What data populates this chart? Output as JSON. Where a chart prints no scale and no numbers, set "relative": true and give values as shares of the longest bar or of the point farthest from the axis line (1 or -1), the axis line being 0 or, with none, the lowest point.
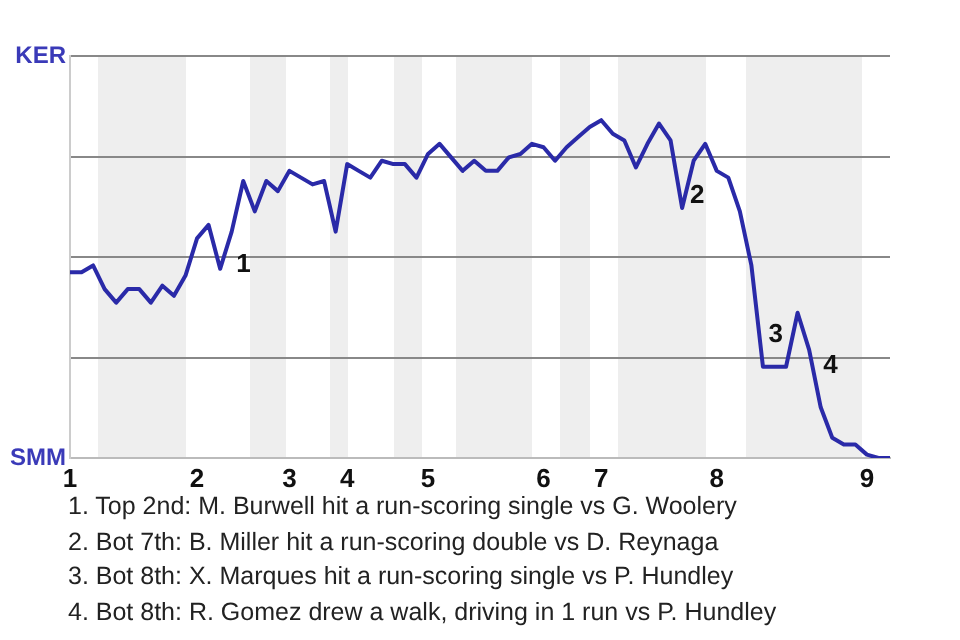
{
  "chart_data": {
    "type": "line",
    "categories": [
      "1",
      null,
      null,
      null,
      null,
      null,
      null,
      null,
      null,
      null,
      null,
      "2",
      null,
      null,
      null,
      null,
      null,
      null,
      null,
      "3",
      null,
      null,
      null,
      null,
      "4",
      null,
      null,
      null,
      null,
      null,
      null,
      "5",
      null,
      null,
      null,
      null,
      null,
      null,
      null,
      null,
      null,
      "6",
      null,
      null,
      null,
      null,
      "7",
      null,
      null,
      null,
      null,
      null,
      null,
      null,
      null,
      null,
      "8",
      null,
      null,
      null,
      null,
      null,
      null,
      null,
      null,
      null,
      null,
      null,
      null,
      "9",
      null,
      null
    ],
    "relative": true,
    "series": [
      {
        "color": "#2a2aa8",
        "values": [
          0.55,
          0.55,
          0.57,
          0.5,
          0.46,
          0.5,
          0.5,
          0.46,
          0.51,
          0.48,
          0.54,
          0.65,
          0.69,
          0.56,
          0.67,
          0.82,
          0.73,
          0.82,
          0.79,
          0.85,
          0.83,
          0.81,
          0.82,
          0.67,
          0.87,
          0.85,
          0.83,
          0.88,
          0.87,
          0.87,
          0.83,
          0.9,
          0.93,
          0.89,
          0.85,
          0.88,
          0.85,
          0.85,
          0.89,
          0.9,
          0.93,
          0.92,
          0.88,
          0.92,
          0.95,
          0.98,
          1,
          0.96,
          0.94,
          0.86,
          0.93,
          0.99,
          0.94,
          0.74,
          0.88,
          0.93,
          0.85,
          0.83,
          0.73,
          0.57,
          0.27,
          0.27,
          0.27,
          0.43,
          0.32,
          0.15,
          0.06,
          0.04,
          0.04,
          0.01,
          0,
          0
        ]
      }
    ],
    "grid": "y",
    "annotations": [
      "KER",
      "SMM",
      "1",
      "2",
      "3",
      "4",
      "1. Top 2nd: M. Burwell hit a run-scoring single vs G. Woolery",
      "2. Bot 7th: B. Miller hit a run-scoring double vs D. Reynaga",
      "3. Bot 8th: X. Marques hit a run-scoring single vs P. Hundley",
      "4. Bot 8th: R. Gomez drew a walk, driving in 1 run vs P. Hundley"
    ]
  }
}
